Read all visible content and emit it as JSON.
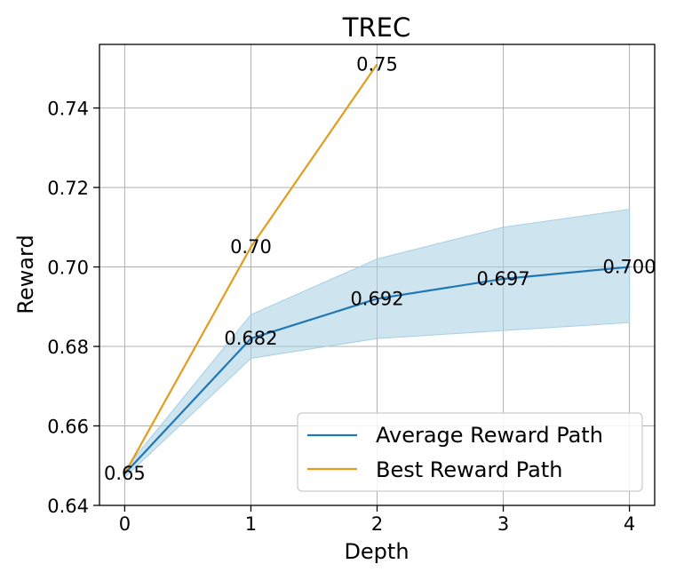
{
  "chart_data": {
    "type": "line",
    "title": "TREC",
    "xlabel": "Depth",
    "ylabel": "Reward",
    "xlim": [
      -0.2,
      4.2
    ],
    "ylim": [
      0.64,
      0.756
    ],
    "x_ticks": [
      0,
      1,
      2,
      3,
      4
    ],
    "y_ticks": [
      0.64,
      0.66,
      0.68,
      0.7,
      0.72,
      0.74
    ],
    "y_tick_labels": [
      "0.64",
      "0.66",
      "0.68",
      "0.70",
      "0.72",
      "0.74"
    ],
    "grid": true,
    "legend_position": "lower-right",
    "series": [
      {
        "name": "Average Reward Path",
        "color": "#1f77b4",
        "x": [
          0,
          1,
          2,
          3,
          4
        ],
        "values": [
          0.648,
          0.682,
          0.692,
          0.697,
          0.7
        ],
        "band_lower": [
          0.647,
          0.677,
          0.682,
          0.684,
          0.686
        ],
        "band_upper": [
          0.649,
          0.688,
          0.702,
          0.71,
          0.7145
        ],
        "band_color": "#a6cfe4",
        "labels": [
          "0.682",
          "0.692",
          "0.697",
          "0.700"
        ],
        "label_x": [
          1,
          2,
          3,
          4
        ]
      },
      {
        "name": "Best Reward Path",
        "color": "#e39c1e",
        "x": [
          0,
          1,
          2
        ],
        "values": [
          0.648,
          0.705,
          0.751
        ],
        "labels": [
          "0.65",
          "0.70",
          "0.75"
        ],
        "label_x": [
          0,
          1,
          2
        ]
      }
    ]
  }
}
